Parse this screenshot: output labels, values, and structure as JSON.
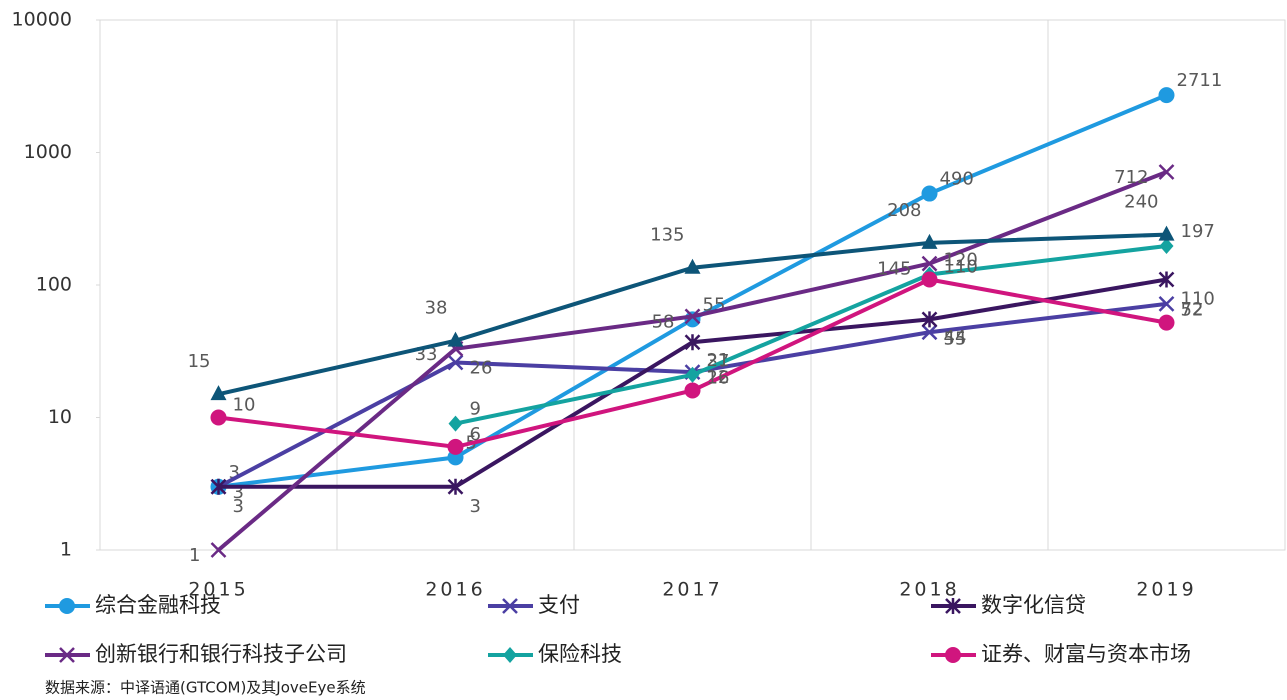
{
  "chart_data": {
    "type": "line",
    "log_scale": true,
    "grid": "vertical",
    "categories": [
      "2015",
      "2016",
      "2017",
      "2018",
      "2019"
    ],
    "ylim": [
      1,
      10000
    ],
    "yticks": [
      1,
      10,
      100,
      1000,
      10000
    ],
    "series": [
      {
        "name": "综合金融科技",
        "color": "#1f9ae0",
        "marker": "circle",
        "values": [
          3,
          5,
          55,
          490,
          2711
        ]
      },
      {
        "name": "支付",
        "color": "#4b3fa3",
        "marker": "x",
        "values": [
          3,
          26,
          22,
          44,
          72
        ]
      },
      {
        "name": "数字化信贷",
        "color": "#3a1660",
        "marker": "asterisk",
        "values": [
          3,
          3,
          37,
          55,
          110
        ]
      },
      {
        "name": "创新银行和银行科技子公司",
        "color": "#6a2a85",
        "marker": "x",
        "values": [
          1,
          33,
          58,
          145,
          712
        ]
      },
      {
        "name": "保险科技",
        "color": "#14a3a0",
        "marker": "diamond",
        "values": [
          null,
          9,
          21,
          120,
          197
        ]
      },
      {
        "name": "证券、财富与资本市场",
        "color": "#d0157e",
        "marker": "circle",
        "values": [
          10,
          6,
          16,
          110,
          52
        ]
      },
      {
        "color": "#0d5578",
        "marker": "triangle",
        "values": [
          15,
          38,
          135,
          208,
          240
        ]
      }
    ],
    "source": "数据来源：中译语通(GTCOM)及其JoveEye系统"
  }
}
